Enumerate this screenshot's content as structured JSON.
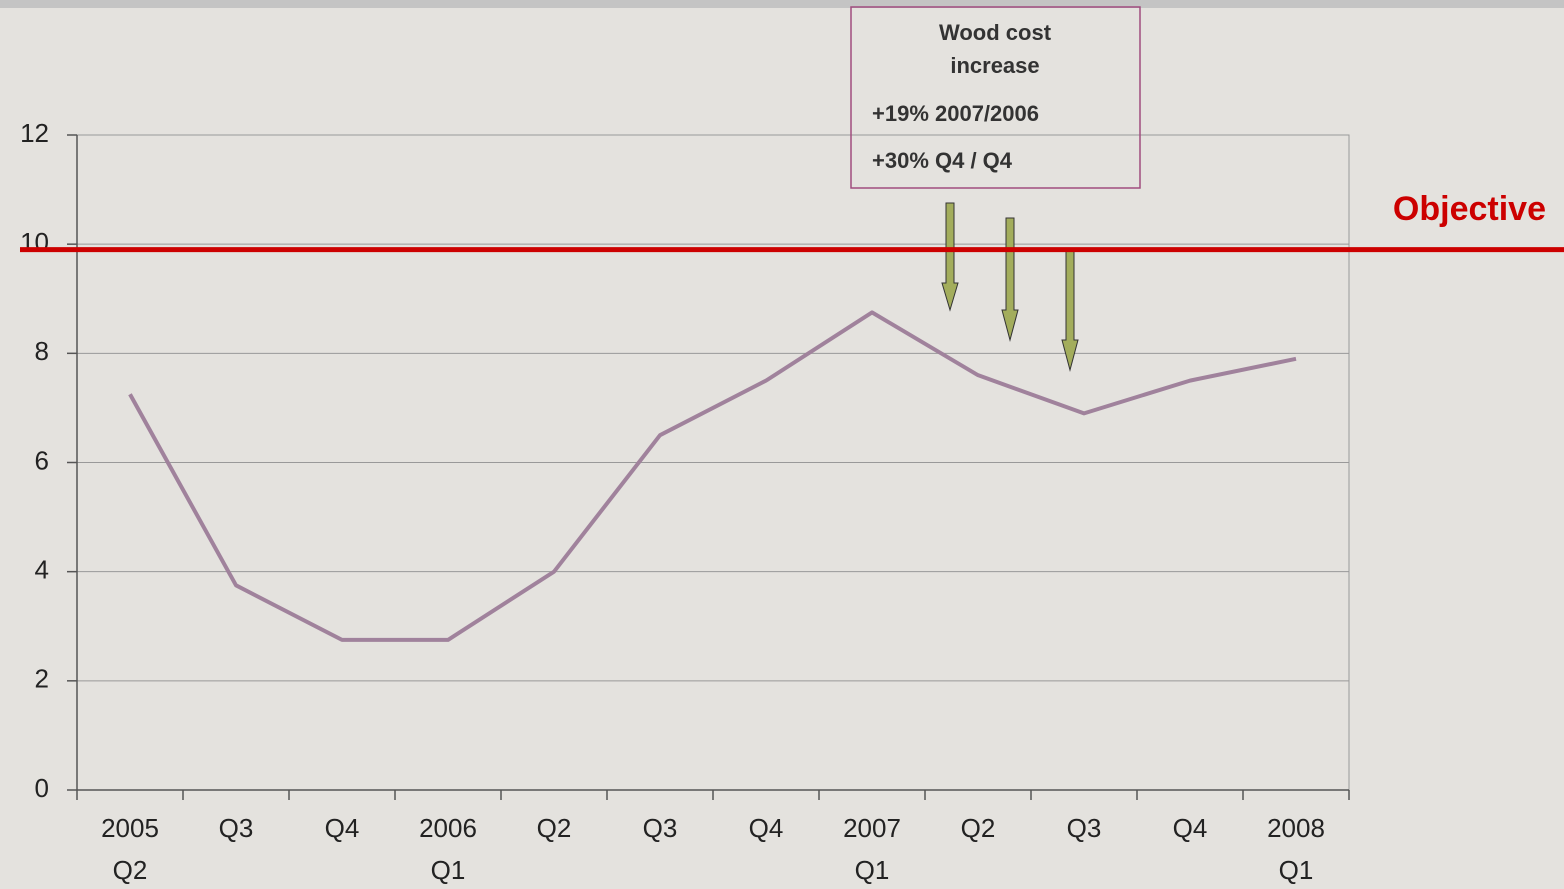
{
  "chart_data": {
    "type": "line",
    "categories": [
      [
        "2005",
        "Q2"
      ],
      [
        "Q3"
      ],
      [
        "Q4"
      ],
      [
        "2006",
        "Q1"
      ],
      [
        "Q2"
      ],
      [
        "Q3"
      ],
      [
        "Q4"
      ],
      [
        "2007",
        "Q1"
      ],
      [
        "Q2"
      ],
      [
        "Q3"
      ],
      [
        "Q4"
      ],
      [
        "2008",
        "Q1"
      ]
    ],
    "series": [
      {
        "color": "#a0829c",
        "values": [
          7.25,
          3.75,
          2.75,
          2.75,
          4,
          6.5,
          7.5,
          8.75,
          7.6,
          6.9,
          7.5,
          7.9
        ]
      }
    ],
    "ylim": [
      0,
      12
    ],
    "yticks": [
      0,
      2,
      4,
      6,
      8,
      10,
      12
    ],
    "grid": true,
    "objective": {
      "label": "Objective",
      "value": 9.9,
      "color": "#cc0000"
    },
    "annotation": {
      "title": [
        "Wood cost",
        "increase"
      ],
      "lines": [
        "+19% 2007/2006",
        "+30% Q4 / Q4"
      ]
    }
  }
}
